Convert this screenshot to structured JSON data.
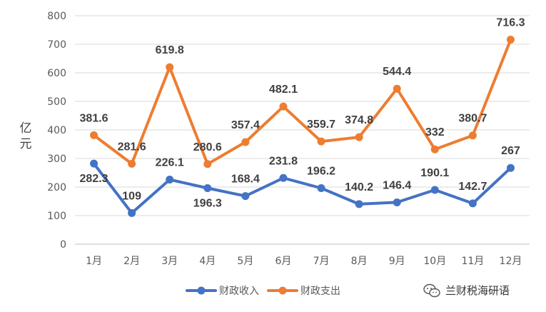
{
  "chart_data": {
    "type": "line",
    "categories": [
      "1月",
      "2月",
      "3月",
      "4月",
      "5月",
      "6月",
      "7月",
      "8月",
      "9月",
      "10月",
      "11月",
      "12月"
    ],
    "series": [
      {
        "name": "财政收入",
        "color": "#4472C4",
        "values": [
          282.3,
          109,
          226.1,
          196.3,
          168.4,
          231.8,
          196.2,
          140.2,
          146.4,
          190.1,
          142.7,
          267
        ],
        "labels": [
          "282.3",
          "109",
          "226.1",
          "196.3",
          "168.4",
          "231.8",
          "196.2",
          "140.2",
          "146.4",
          "190.1",
          "142.7",
          "267"
        ]
      },
      {
        "name": "财政支出",
        "color": "#ED7D31",
        "values": [
          381.6,
          281.6,
          619.8,
          280.6,
          357.4,
          482.1,
          359.7,
          374.8,
          544.4,
          332,
          380.7,
          716.3
        ],
        "labels": [
          "381.6",
          "281.6",
          "619.8",
          "280.6",
          "357.4",
          "482.1",
          "359.7",
          "374.8",
          "544.4",
          "332",
          "380.7",
          "716.3"
        ]
      }
    ],
    "ylabel": "亿元",
    "ylim": [
      0,
      800
    ],
    "yticks": [
      "0",
      "100",
      "200",
      "300",
      "400",
      "500",
      "600",
      "700",
      "800"
    ],
    "grid": true,
    "legend": "bottom"
  },
  "watermark": {
    "text": "兰财税海研语",
    "icon": "wechat-icon"
  }
}
